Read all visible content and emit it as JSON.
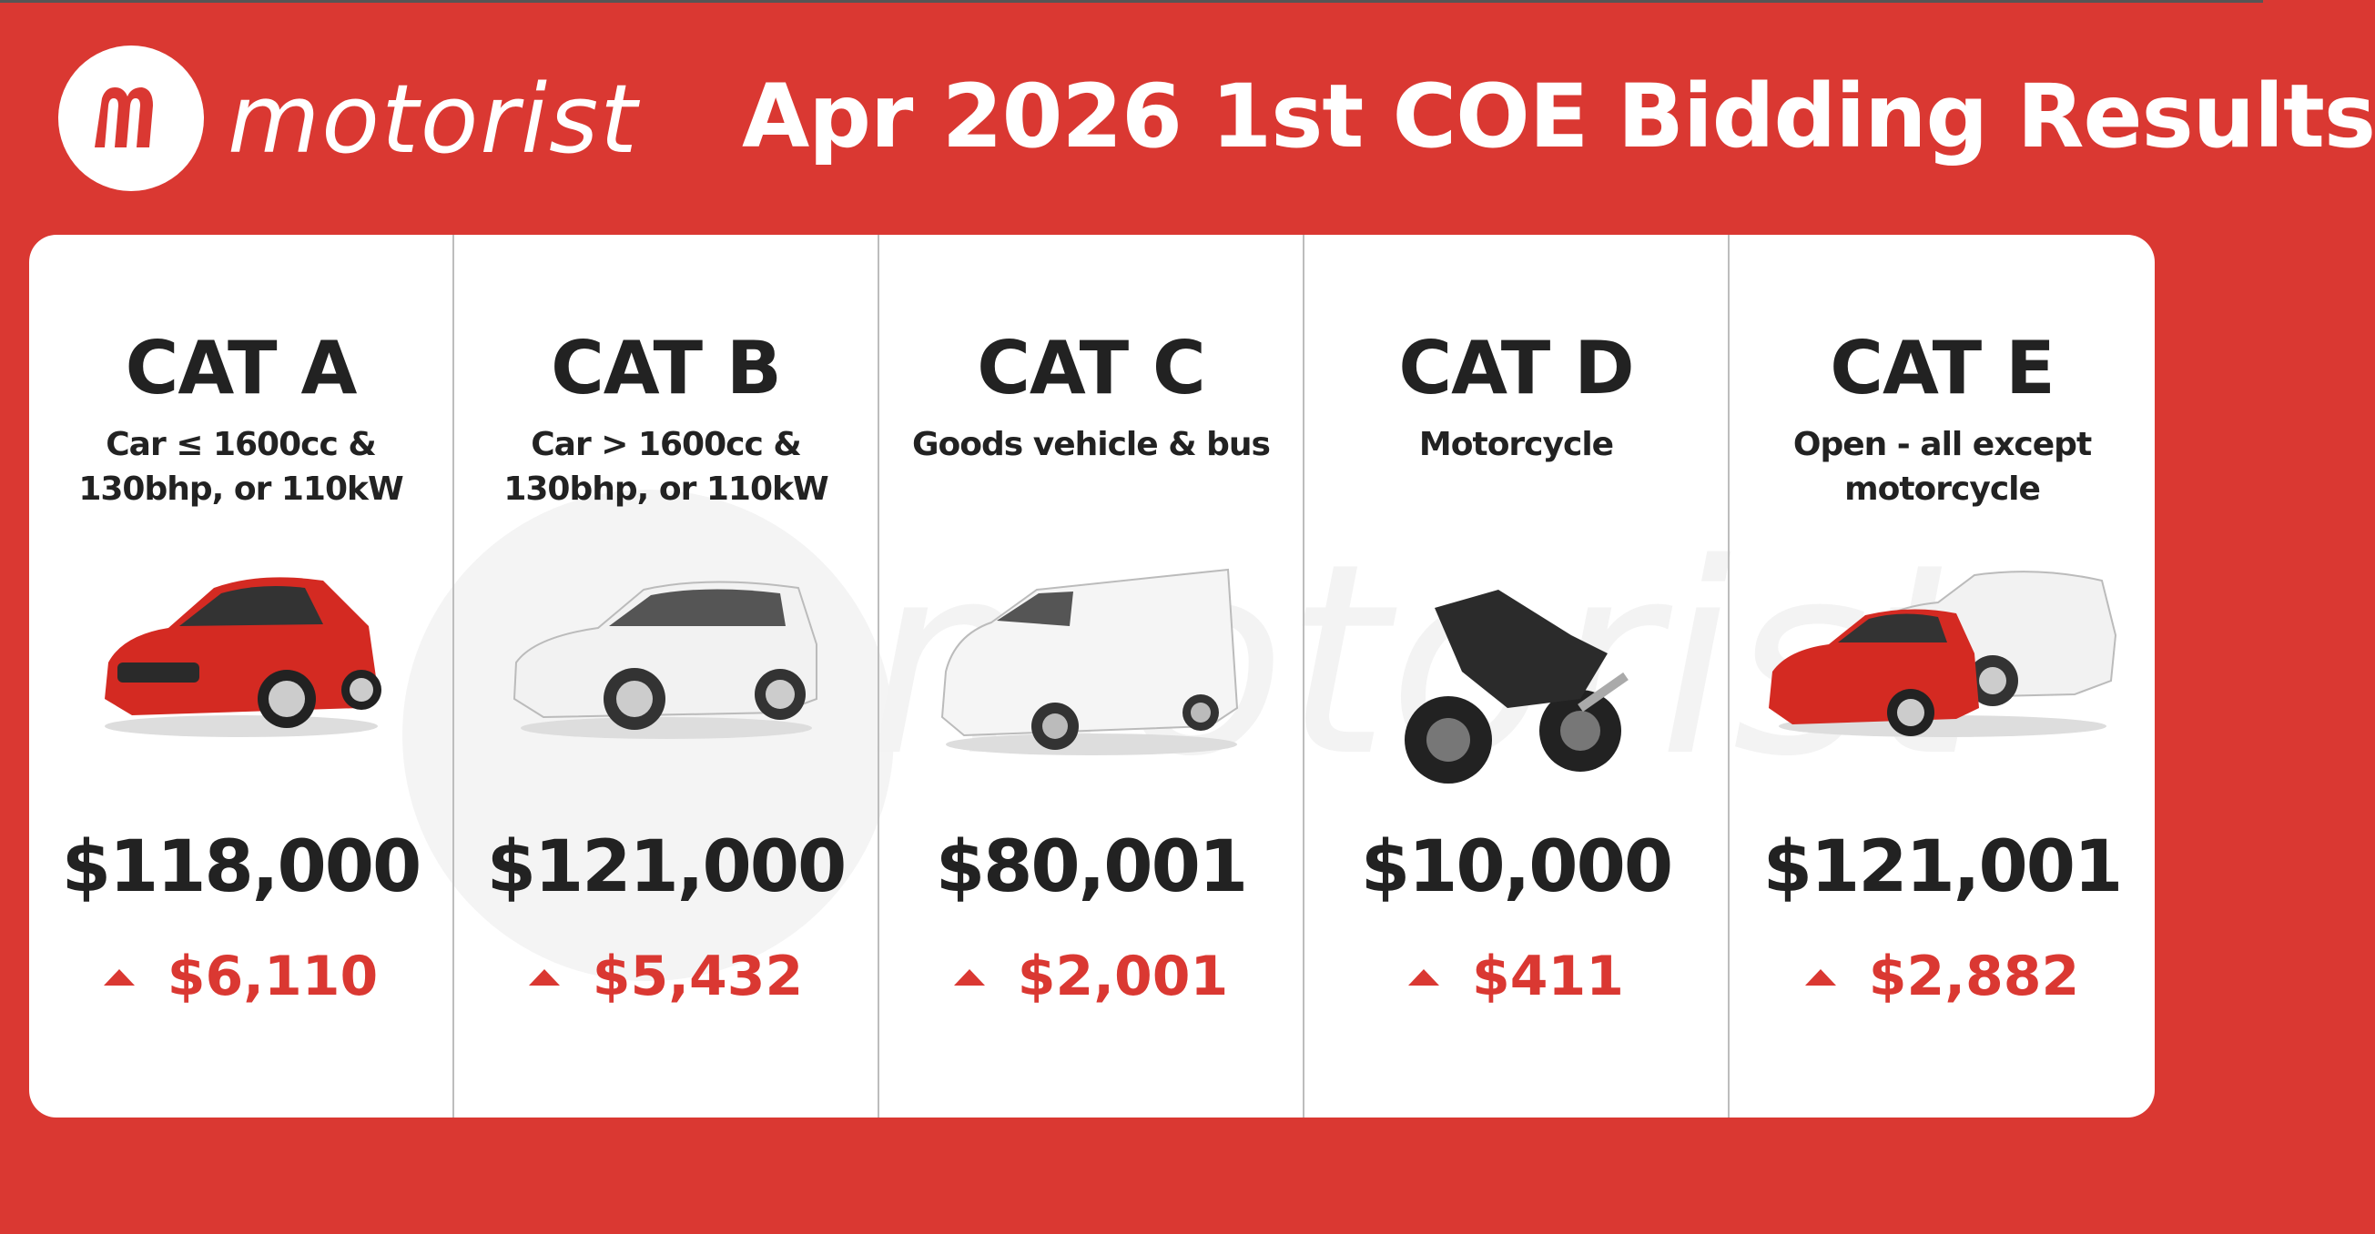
{
  "brand": {
    "name": "motorist",
    "logo_letter": "m"
  },
  "title": "Apr 2026 1st COE Bidding Results",
  "colors": {
    "brand_red": "#da3832",
    "text_dark": "#222222",
    "card_bg": "#ffffff"
  },
  "categories": [
    {
      "name": "CAT A",
      "description": "Car ≤ 1600cc &\n130bhp, or 110kW",
      "vehicle_icon": "red-hatchback",
      "premium": "$118,000",
      "change": "$6,110",
      "direction": "up"
    },
    {
      "name": "CAT B",
      "description": "Car > 1600cc &\n130bhp, or 110kW",
      "vehicle_icon": "white-suv",
      "premium": "$121,000",
      "change": "$5,432",
      "direction": "up"
    },
    {
      "name": "CAT C",
      "description": "Goods vehicle & bus",
      "vehicle_icon": "white-van",
      "premium": "$80,001",
      "change": "$2,001",
      "direction": "up"
    },
    {
      "name": "CAT D",
      "description": "Motorcycle",
      "vehicle_icon": "black-motorcycle",
      "premium": "$10,000",
      "change": "$411",
      "direction": "up"
    },
    {
      "name": "CAT E",
      "description": "Open - all except\nmotorcycle",
      "vehicle_icon": "red-car-and-white-suv",
      "premium": "$121,001",
      "change": "$2,882",
      "direction": "up"
    }
  ]
}
